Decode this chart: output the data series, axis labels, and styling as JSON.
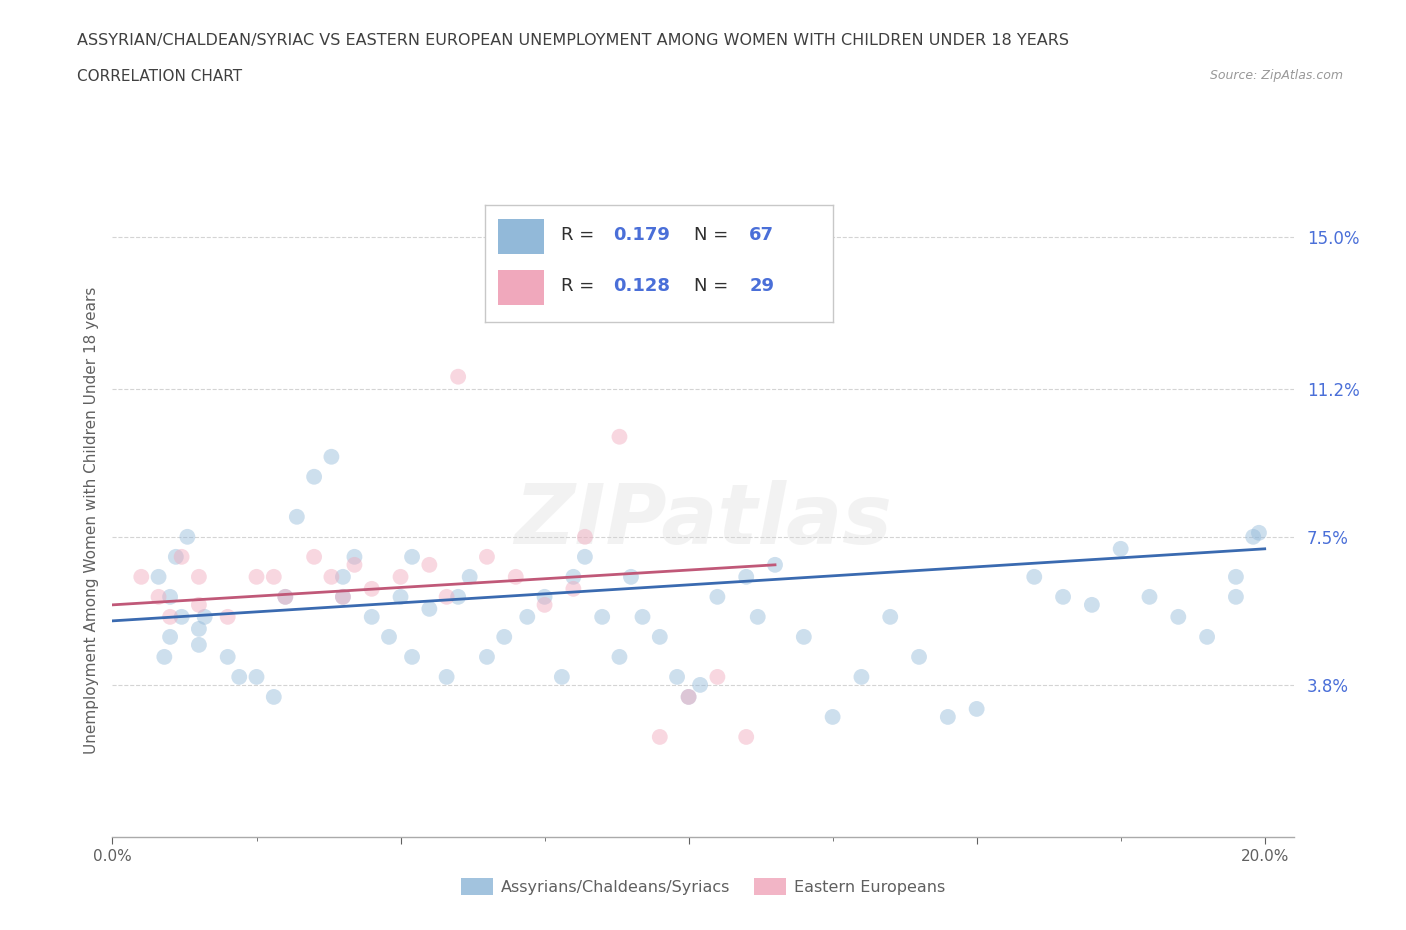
{
  "title": "ASSYRIAN/CHALDEAN/SYRIAC VS EASTERN EUROPEAN UNEMPLOYMENT AMONG WOMEN WITH CHILDREN UNDER 18 YEARS",
  "subtitle": "CORRELATION CHART",
  "source": "Source: ZipAtlas.com",
  "ylabel": "Unemployment Among Women with Children Under 18 years",
  "xlim": [
    0.0,
    0.205
  ],
  "ylim": [
    0.0,
    0.158
  ],
  "ytick_vals": [
    0.038,
    0.075,
    0.112,
    0.15
  ],
  "ytick_labels": [
    "3.8%",
    "7.5%",
    "11.2%",
    "15.0%"
  ],
  "xtick_vals": [
    0.0,
    0.05,
    0.1,
    0.15,
    0.2
  ],
  "xtick_labels": [
    "0.0%",
    "",
    "",
    "",
    "20.0%"
  ],
  "xtick_minor": [
    0.025,
    0.075,
    0.125,
    0.175
  ],
  "legend_entries": [
    {
      "label": "Assyrians/Chaldeans/Syriacs",
      "R": 0.179,
      "N": 67,
      "dot_color": "#92b9d9",
      "line_color": "#3a6ab0"
    },
    {
      "label": "Eastern Europeans",
      "R": 0.128,
      "N": 29,
      "dot_color": "#f0a8bc",
      "line_color": "#c05878"
    }
  ],
  "blue_x": [
    0.01,
    0.01,
    0.012,
    0.009,
    0.008,
    0.011,
    0.013,
    0.015,
    0.015,
    0.016,
    0.02,
    0.022,
    0.025,
    0.028,
    0.03,
    0.032,
    0.035,
    0.038,
    0.04,
    0.04,
    0.042,
    0.045,
    0.048,
    0.05,
    0.052,
    0.052,
    0.055,
    0.058,
    0.06,
    0.062,
    0.065,
    0.068,
    0.072,
    0.075,
    0.078,
    0.08,
    0.082,
    0.085,
    0.088,
    0.09,
    0.092,
    0.095,
    0.098,
    0.1,
    0.102,
    0.105,
    0.11,
    0.112,
    0.115,
    0.12,
    0.125,
    0.13,
    0.135,
    0.14,
    0.145,
    0.15,
    0.16,
    0.165,
    0.17,
    0.175,
    0.18,
    0.185,
    0.19,
    0.195,
    0.195,
    0.198,
    0.199
  ],
  "blue_y": [
    0.05,
    0.06,
    0.055,
    0.045,
    0.065,
    0.07,
    0.075,
    0.048,
    0.052,
    0.055,
    0.045,
    0.04,
    0.04,
    0.035,
    0.06,
    0.08,
    0.09,
    0.095,
    0.06,
    0.065,
    0.07,
    0.055,
    0.05,
    0.06,
    0.07,
    0.045,
    0.057,
    0.04,
    0.06,
    0.065,
    0.045,
    0.05,
    0.055,
    0.06,
    0.04,
    0.065,
    0.07,
    0.055,
    0.045,
    0.065,
    0.055,
    0.05,
    0.04,
    0.035,
    0.038,
    0.06,
    0.065,
    0.055,
    0.068,
    0.05,
    0.03,
    0.04,
    0.055,
    0.045,
    0.03,
    0.032,
    0.065,
    0.06,
    0.058,
    0.072,
    0.06,
    0.055,
    0.05,
    0.06,
    0.065,
    0.075,
    0.076
  ],
  "pink_x": [
    0.005,
    0.008,
    0.01,
    0.012,
    0.015,
    0.015,
    0.02,
    0.025,
    0.028,
    0.03,
    0.035,
    0.038,
    0.04,
    0.042,
    0.045,
    0.05,
    0.055,
    0.058,
    0.06,
    0.065,
    0.07,
    0.075,
    0.08,
    0.082,
    0.088,
    0.095,
    0.1,
    0.105,
    0.11
  ],
  "pink_y": [
    0.065,
    0.06,
    0.055,
    0.07,
    0.065,
    0.058,
    0.055,
    0.065,
    0.065,
    0.06,
    0.07,
    0.065,
    0.06,
    0.068,
    0.062,
    0.065,
    0.068,
    0.06,
    0.115,
    0.07,
    0.065,
    0.058,
    0.062,
    0.075,
    0.1,
    0.025,
    0.035,
    0.04,
    0.025
  ],
  "blue_line": {
    "x": [
      0.0,
      0.2
    ],
    "y": [
      0.054,
      0.072
    ]
  },
  "pink_line": {
    "x": [
      0.0,
      0.115
    ],
    "y": [
      0.058,
      0.068
    ]
  },
  "scatter_size": 130,
  "scatter_alpha": 0.45,
  "watermark": "ZIPatlas",
  "background_color": "#ffffff",
  "grid_color": "#d0d0d0",
  "title_color": "#404040",
  "axis_color": "#606060",
  "tick_color_blue": "#4a6fd8",
  "legend_R_label_color": "#404040",
  "legend_val_color": "#4a6fd8"
}
